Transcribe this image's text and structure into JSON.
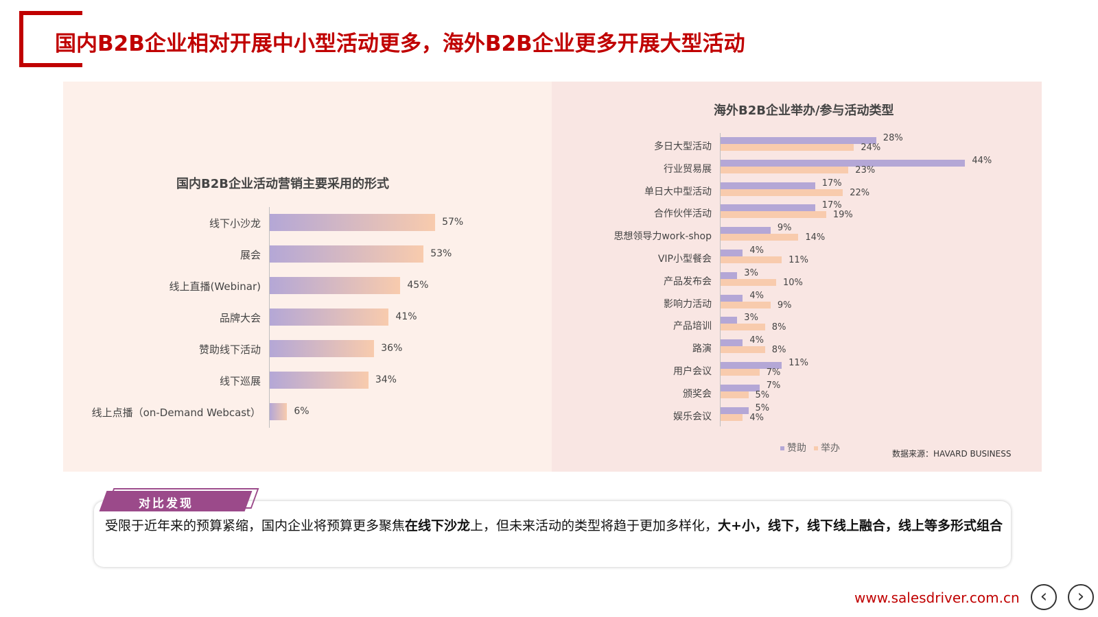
{
  "title": "国内B2B企业相对开展中小型活动更多，海外B2B企业更多开展大型活动",
  "colors": {
    "accent": "#c00000",
    "purple": "#b4a7d6",
    "peach": "#f8cbad",
    "tab": "#9b4a8a"
  },
  "chart_data": [
    {
      "type": "bar",
      "orientation": "horizontal",
      "title": "国内B2B企业活动营销主要采用的形式",
      "categories": [
        "线下小沙龙",
        "展会",
        "线上直播(Webinar)",
        "品牌大会",
        "赞助线下活动",
        "线下巡展",
        "线上点播（on-Demand Webcast）"
      ],
      "values": [
        57,
        53,
        45,
        41,
        36,
        34,
        6
      ],
      "value_labels": [
        "57%",
        "53%",
        "45%",
        "41%",
        "36%",
        "34%",
        "6%"
      ],
      "gradient": [
        "#b4a7d6",
        "#f8cbad"
      ]
    },
    {
      "type": "bar",
      "orientation": "horizontal",
      "title": "海外B2B企业举办/参与活动类型",
      "categories": [
        "多日大型活动",
        "行业贸易展",
        "单日大中型活动",
        "合作伙伴活动",
        "思想领导力work-shop",
        "VIP小型餐会",
        "产品发布会",
        "影响力活动",
        "产品培训",
        "路演",
        "用户会议",
        "颁奖会",
        "娱乐会议"
      ],
      "series": [
        {
          "name": "赞助",
          "color": "#b4a7d6",
          "values": [
            28,
            44,
            17,
            17,
            9,
            4,
            3,
            4,
            3,
            4,
            11,
            7,
            5
          ],
          "labels": [
            "28%",
            "44%",
            "17%",
            "17%",
            "9%",
            "4%",
            "3%",
            "4%",
            "3%",
            "4%",
            "11%",
            "7%",
            "5%"
          ]
        },
        {
          "name": "举办",
          "color": "#f8cbad",
          "values": [
            24,
            23,
            22,
            19,
            14,
            11,
            10,
            9,
            8,
            8,
            7,
            5,
            4
          ],
          "labels": [
            "24%",
            "23%",
            "22%",
            "19%",
            "14%",
            "11%",
            "10%",
            "9%",
            "8%",
            "8%",
            "7%",
            "5%",
            "4%"
          ]
        }
      ],
      "legend": "bottom"
    }
  ],
  "source": "数据来源：HAVARD BUSINESS",
  "finding": {
    "tab_label": "对比发现",
    "text_1": "受限于近年来的预算紧缩，国内企业将预算更多聚焦",
    "text_bold_1": "在线下沙龙",
    "text_2": "上，但未来活动的类型将趋于更加多样化，",
    "text_bold_2": "大+小，线下，线下线上融合，线上等多形式组合"
  },
  "website": "www.salesdriver.com.cn",
  "nav": {
    "prev_icon": "‹",
    "next_icon": "›"
  }
}
